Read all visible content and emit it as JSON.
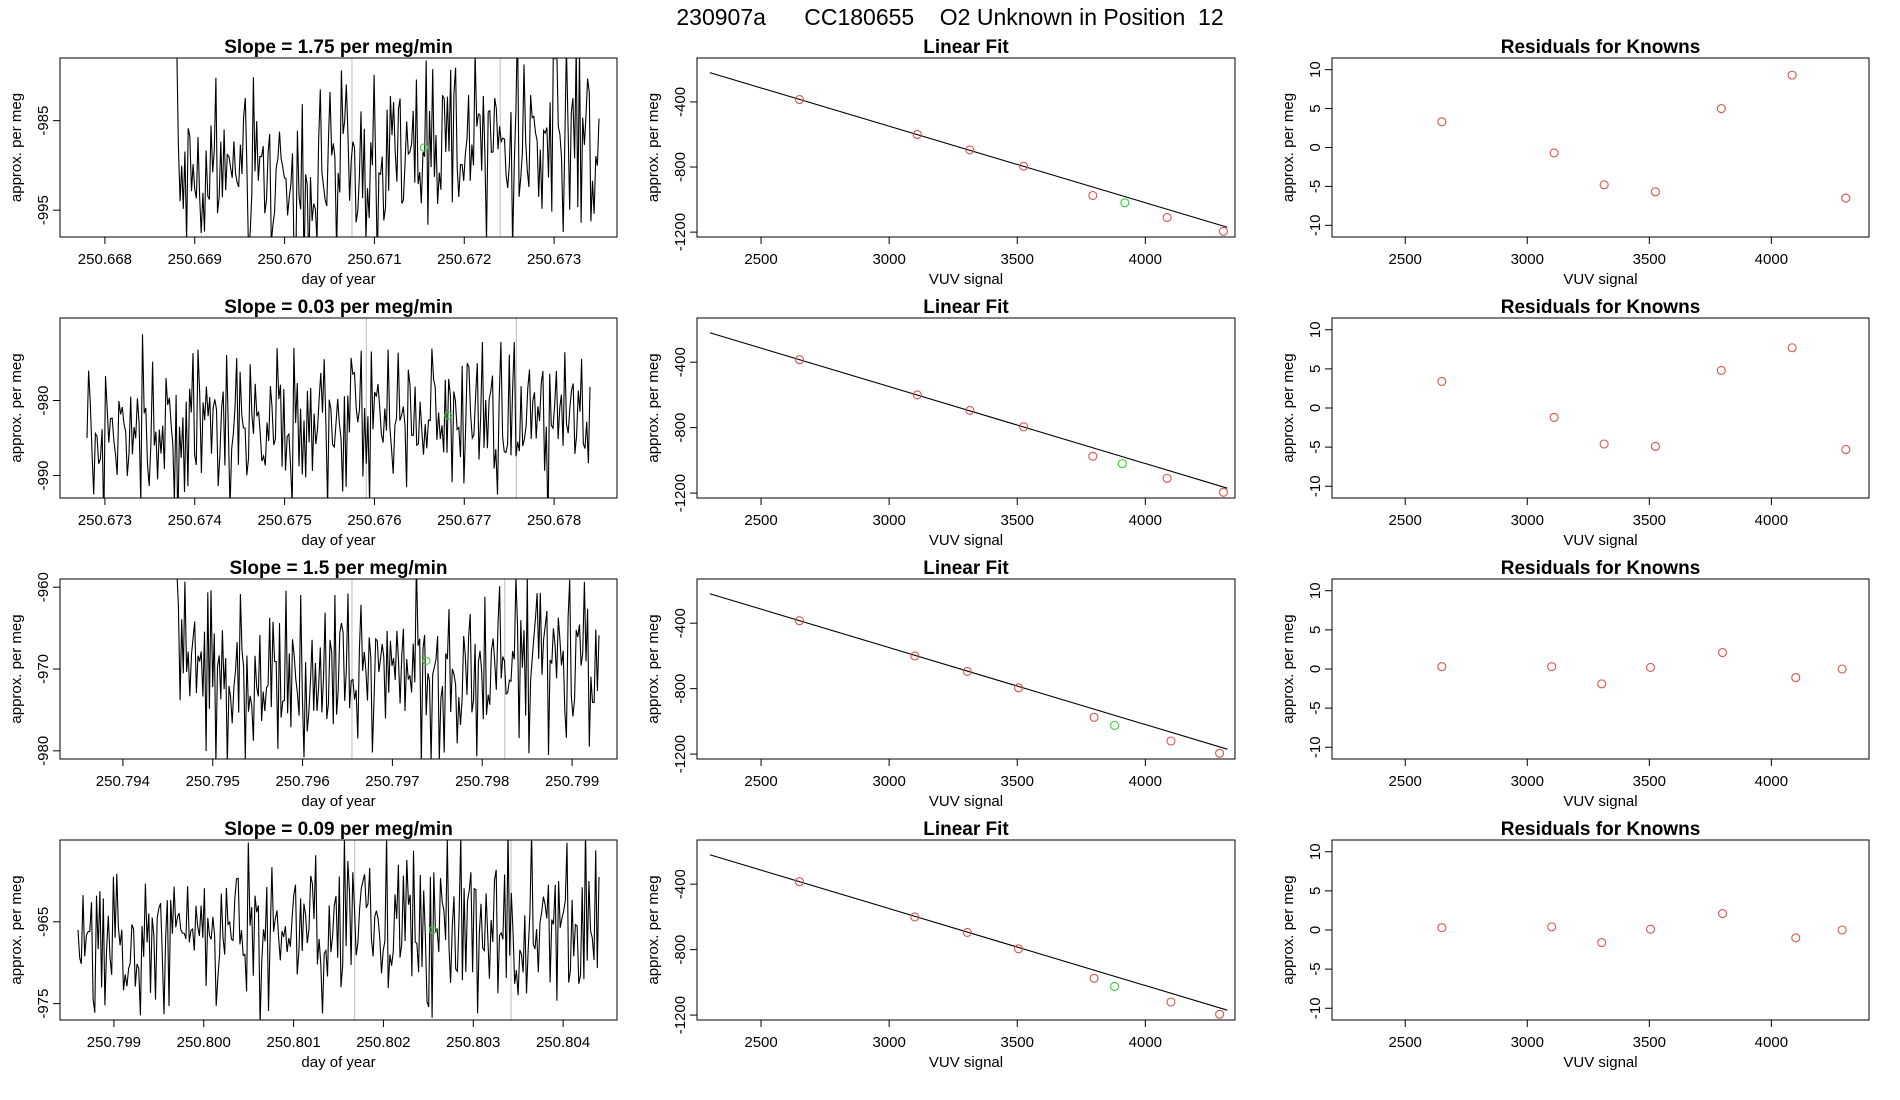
{
  "title": "230907a      CC180655    O2 Unknown in Position  12",
  "colors": {
    "trace": "#000000",
    "marker_known": "#d9534f",
    "marker_unknown": "#33cc33",
    "vline": "#c8c8c8",
    "fit": "#000000"
  },
  "chart_data": [
    {
      "type": "line",
      "row": 1,
      "title": "Slope =  1.75  per meg/min",
      "xlabel": "day of year",
      "ylabel": "approx. per meg",
      "xlim": [
        250.6675,
        250.6737
      ],
      "ylim": [
        -998,
        -978
      ],
      "xticks": [
        250.668,
        250.669,
        250.67,
        250.671,
        250.672,
        250.673
      ],
      "xticklabels": [
        "250.668",
        "250.669",
        "250.670",
        "250.671",
        "250.672",
        "250.673"
      ],
      "yticks": [
        -985,
        -995
      ],
      "yticklabels": [
        "-985",
        "-995"
      ],
      "series_start_x": 250.6688,
      "series_end_x": 250.6735,
      "series_points": 260,
      "series_start_y": -977,
      "series_mean": [
        -991,
        -991,
        -988.5,
        -986
      ],
      "series_noise": 4.5,
      "vlines": [
        250.67075,
        250.6724
      ],
      "unknown_point": [
        250.67155,
        -988
      ]
    },
    {
      "type": "scatter",
      "row": 1,
      "title": "Linear Fit",
      "xlabel": "VUV signal",
      "ylabel": "approx. per meg",
      "xlim": [
        2250,
        4350
      ],
      "ylim": [
        -1230,
        -130
      ],
      "xticks": [
        2500,
        3000,
        3500,
        4000
      ],
      "xticklabels": [
        "2500",
        "3000",
        "3500",
        "4000"
      ],
      "yticks": [
        -400,
        -800,
        -1200
      ],
      "yticklabels": [
        "-400",
        "-800",
        "-1200"
      ],
      "fit_line": {
        "x": [
          2300,
          4320
        ],
        "y": [
          -220,
          -1170
        ]
      },
      "known_points": {
        "x": [
          2650,
          3110,
          3315,
          3525,
          3795,
          4085,
          4305
        ],
        "y": [
          -385,
          -600,
          -695,
          -795,
          -975,
          -1110,
          -1195
        ]
      },
      "unknown_point": {
        "x": 3920,
        "y": -1020
      }
    },
    {
      "type": "scatter",
      "row": 1,
      "title": "Residuals for Knowns",
      "xlabel": "VUV signal",
      "ylabel": "approx. per meg",
      "xlim": [
        2200,
        4400
      ],
      "ylim": [
        -11.5,
        11.5
      ],
      "xticks": [
        2500,
        3000,
        3500,
        4000
      ],
      "xticklabels": [
        "2500",
        "3000",
        "3500",
        "4000"
      ],
      "yticks": [
        10,
        5,
        0,
        -5,
        -10
      ],
      "yticklabels": [
        "10",
        "5",
        "0",
        "-5",
        "-10"
      ],
      "known_points": {
        "x": [
          2650,
          3110,
          3315,
          3525,
          3795,
          4085,
          4305
        ],
        "y": [
          3.3,
          -0.7,
          -4.8,
          -5.7,
          5.0,
          9.3,
          -6.5
        ]
      }
    },
    {
      "type": "line",
      "row": 2,
      "title": "Slope =  0.03  per meg/min",
      "xlabel": "day of year",
      "ylabel": "approx. per meg",
      "xlim": [
        250.6725,
        250.6787
      ],
      "ylim": [
        -993,
        -969
      ],
      "xticks": [
        250.673,
        250.674,
        250.675,
        250.676,
        250.677,
        250.678
      ],
      "xticklabels": [
        "250.673",
        "250.674",
        "250.675",
        "250.676",
        "250.677",
        "250.678"
      ],
      "yticks": [
        -980,
        -990
      ],
      "yticklabels": [
        "-980",
        "-990"
      ],
      "series_start_x": 250.6728,
      "series_end_x": 250.6784,
      "series_points": 300,
      "series_start_y": -985,
      "series_mean": [
        -986,
        -983,
        -983,
        -983
      ],
      "series_noise": 4.5,
      "vlines": [
        250.67591,
        250.67758
      ],
      "unknown_point": [
        250.67682,
        -982
      ]
    },
    {
      "type": "scatter",
      "row": 2,
      "title": "Linear Fit",
      "xlabel": "VUV signal",
      "ylabel": "approx. per meg",
      "xlim": [
        2250,
        4350
      ],
      "ylim": [
        -1230,
        -130
      ],
      "xticks": [
        2500,
        3000,
        3500,
        4000
      ],
      "xticklabels": [
        "2500",
        "3000",
        "3500",
        "4000"
      ],
      "yticks": [
        -400,
        -800,
        -1200
      ],
      "yticklabels": [
        "-400",
        "-800",
        "-1200"
      ],
      "fit_line": {
        "x": [
          2300,
          4320
        ],
        "y": [
          -220,
          -1170
        ]
      },
      "known_points": {
        "x": [
          2650,
          3110,
          3315,
          3525,
          3795,
          4085,
          4305
        ],
        "y": [
          -385,
          -600,
          -695,
          -795,
          -975,
          -1110,
          -1195
        ]
      },
      "unknown_point": {
        "x": 3910,
        "y": -1020
      }
    },
    {
      "type": "scatter",
      "row": 2,
      "title": "Residuals for Knowns",
      "xlabel": "VUV signal",
      "ylabel": "approx. per meg",
      "xlim": [
        2200,
        4400
      ],
      "ylim": [
        -11.5,
        11.5
      ],
      "xticks": [
        2500,
        3000,
        3500,
        4000
      ],
      "xticklabels": [
        "2500",
        "3000",
        "3500",
        "4000"
      ],
      "yticks": [
        10,
        5,
        0,
        -5,
        -10
      ],
      "yticklabels": [
        "10",
        "5",
        "0",
        "-5",
        "-10"
      ],
      "known_points": {
        "x": [
          2650,
          3110,
          3315,
          3525,
          3795,
          4085,
          4305
        ],
        "y": [
          3.4,
          -1.2,
          -4.6,
          -4.9,
          4.8,
          7.7,
          -5.3
        ]
      }
    },
    {
      "type": "line",
      "row": 3,
      "title": "Slope =  1.5  per meg/min",
      "xlabel": "day of year",
      "ylabel": "approx. per meg",
      "xlim": [
        250.7933,
        250.7995
      ],
      "ylim": [
        -981,
        -959
      ],
      "xticks": [
        250.794,
        250.795,
        250.796,
        250.797,
        250.798,
        250.799
      ],
      "xticklabels": [
        "250.794",
        "250.795",
        "250.796",
        "250.797",
        "250.798",
        "250.799"
      ],
      "yticks": [
        -960,
        -970,
        -980
      ],
      "yticklabels": [
        "-960",
        "-970",
        "-980"
      ],
      "series_start_x": 250.7946,
      "series_end_x": 250.7993,
      "series_points": 260,
      "series_start_y": -958,
      "series_mean": [
        -970,
        -972,
        -970,
        -969
      ],
      "series_noise": 4.5,
      "vlines": [
        250.79655,
        250.79825
      ],
      "unknown_point": [
        250.79738,
        -969
      ]
    },
    {
      "type": "scatter",
      "row": 3,
      "title": "Linear Fit",
      "xlabel": "VUV signal",
      "ylabel": "approx. per meg",
      "xlim": [
        2250,
        4350
      ],
      "ylim": [
        -1230,
        -130
      ],
      "xticks": [
        2500,
        3000,
        3500,
        4000
      ],
      "xticklabels": [
        "2500",
        "3000",
        "3500",
        "4000"
      ],
      "yticks": [
        -400,
        -800,
        -1200
      ],
      "yticklabels": [
        "-400",
        "-800",
        "-1200"
      ],
      "fit_line": {
        "x": [
          2300,
          4320
        ],
        "y": [
          -220,
          -1170
        ]
      },
      "known_points": {
        "x": [
          2650,
          3100,
          3305,
          3505,
          3800,
          4100,
          4290
        ],
        "y": [
          -385,
          -600,
          -695,
          -795,
          -975,
          -1120,
          -1195
        ]
      },
      "unknown_point": {
        "x": 3880,
        "y": -1025
      }
    },
    {
      "type": "scatter",
      "row": 3,
      "title": "Residuals for Knowns",
      "xlabel": "VUV signal",
      "ylabel": "approx. per meg",
      "xlim": [
        2200,
        4400
      ],
      "ylim": [
        -11.5,
        11.5
      ],
      "xticks": [
        2500,
        3000,
        3500,
        4000
      ],
      "xticklabels": [
        "2500",
        "3000",
        "3500",
        "4000"
      ],
      "yticks": [
        10,
        5,
        0,
        -5,
        -10
      ],
      "yticklabels": [
        "10",
        "5",
        "0",
        "-5",
        "-10"
      ],
      "known_points": {
        "x": [
          2650,
          3100,
          3305,
          3505,
          3800,
          4100,
          4290
        ],
        "y": [
          0.3,
          0.3,
          -1.9,
          0.2,
          2.1,
          -1.1,
          0.0
        ]
      }
    },
    {
      "type": "line",
      "row": 4,
      "title": "Slope =  0.09  per meg/min",
      "xlabel": "day of year",
      "ylabel": "approx. per meg",
      "xlim": [
        250.7984,
        250.8046
      ],
      "ylim": [
        -977,
        -955
      ],
      "xticks": [
        250.799,
        250.8,
        250.801,
        250.802,
        250.803,
        250.804
      ],
      "xticklabels": [
        "250.799",
        "250.800",
        "250.801",
        "250.802",
        "250.803",
        "250.804"
      ],
      "yticks": [
        -965,
        -975
      ],
      "yticklabels": [
        "-965",
        "-975"
      ],
      "series_start_x": 250.7986,
      "series_end_x": 250.8044,
      "series_points": 310,
      "series_start_y": -966,
      "series_mean": [
        -966,
        -965,
        -966,
        -964
      ],
      "series_noise": 4.5,
      "vlines": [
        250.80168,
        250.80342
      ],
      "unknown_point": [
        250.80255,
        -966
      ]
    },
    {
      "type": "scatter",
      "row": 4,
      "title": "Linear Fit",
      "xlabel": "VUV signal",
      "ylabel": "approx. per meg",
      "xlim": [
        2250,
        4350
      ],
      "ylim": [
        -1230,
        -130
      ],
      "xticks": [
        2500,
        3000,
        3500,
        4000
      ],
      "xticklabels": [
        "2500",
        "3000",
        "3500",
        "4000"
      ],
      "yticks": [
        -400,
        -800,
        -1200
      ],
      "yticklabels": [
        "-400",
        "-800",
        "-1200"
      ],
      "fit_line": {
        "x": [
          2300,
          4320
        ],
        "y": [
          -220,
          -1170
        ]
      },
      "known_points": {
        "x": [
          2650,
          3100,
          3305,
          3505,
          3800,
          4100,
          4290
        ],
        "y": [
          -385,
          -600,
          -695,
          -795,
          -975,
          -1120,
          -1195
        ]
      },
      "unknown_point": {
        "x": 3880,
        "y": -1025
      }
    },
    {
      "type": "scatter",
      "row": 4,
      "title": "Residuals for Knowns",
      "xlabel": "VUV signal",
      "ylabel": "approx. per meg",
      "xlim": [
        2200,
        4400
      ],
      "ylim": [
        -11.5,
        11.5
      ],
      "xticks": [
        2500,
        3000,
        3500,
        4000
      ],
      "xticklabels": [
        "2500",
        "3000",
        "3500",
        "4000"
      ],
      "yticks": [
        10,
        5,
        0,
        -5,
        -10
      ],
      "yticklabels": [
        "10",
        "5",
        "0",
        "-5",
        "-10"
      ],
      "known_points": {
        "x": [
          2650,
          3100,
          3305,
          3505,
          3800,
          4100,
          4290
        ],
        "y": [
          0.3,
          0.4,
          -1.6,
          0.1,
          2.1,
          -1.0,
          0.0
        ]
      }
    }
  ]
}
